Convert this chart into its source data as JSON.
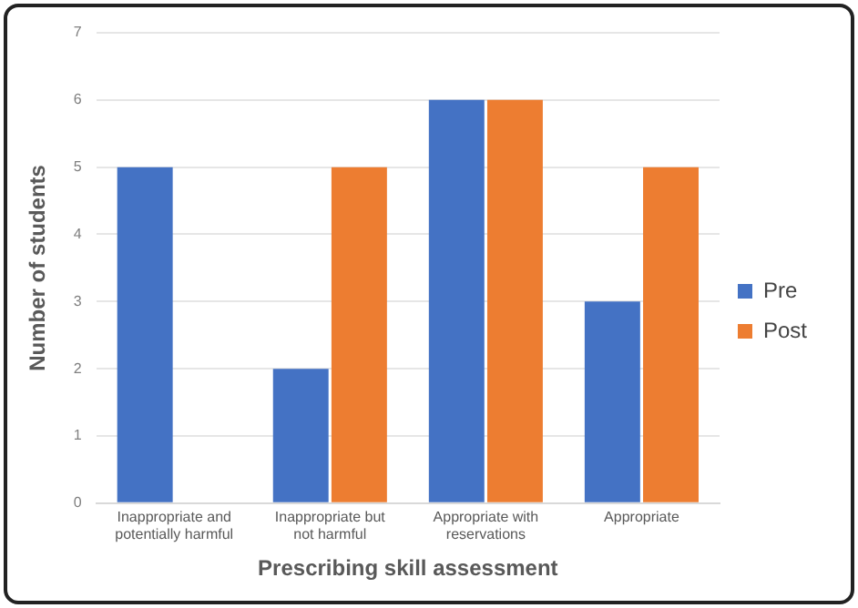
{
  "chart_data": {
    "type": "bar",
    "xlabel": "Prescribing skill assessment",
    "ylabel": "Number of students",
    "categories": [
      "Inappropriate and potentially harmful",
      "Inappropriate but not harmful",
      "Appropriate with reservations",
      "Appropriate"
    ],
    "series": [
      {
        "name": "Pre",
        "color": "#4472c4",
        "values": [
          5,
          2,
          6,
          3
        ]
      },
      {
        "name": "Post",
        "color": "#ed7d31",
        "values": [
          0,
          5,
          6,
          5
        ]
      }
    ],
    "ylim": [
      0,
      7
    ],
    "yticks": [
      0,
      1,
      2,
      3,
      4,
      5,
      6,
      7
    ],
    "grid": "y",
    "legend": "right"
  }
}
